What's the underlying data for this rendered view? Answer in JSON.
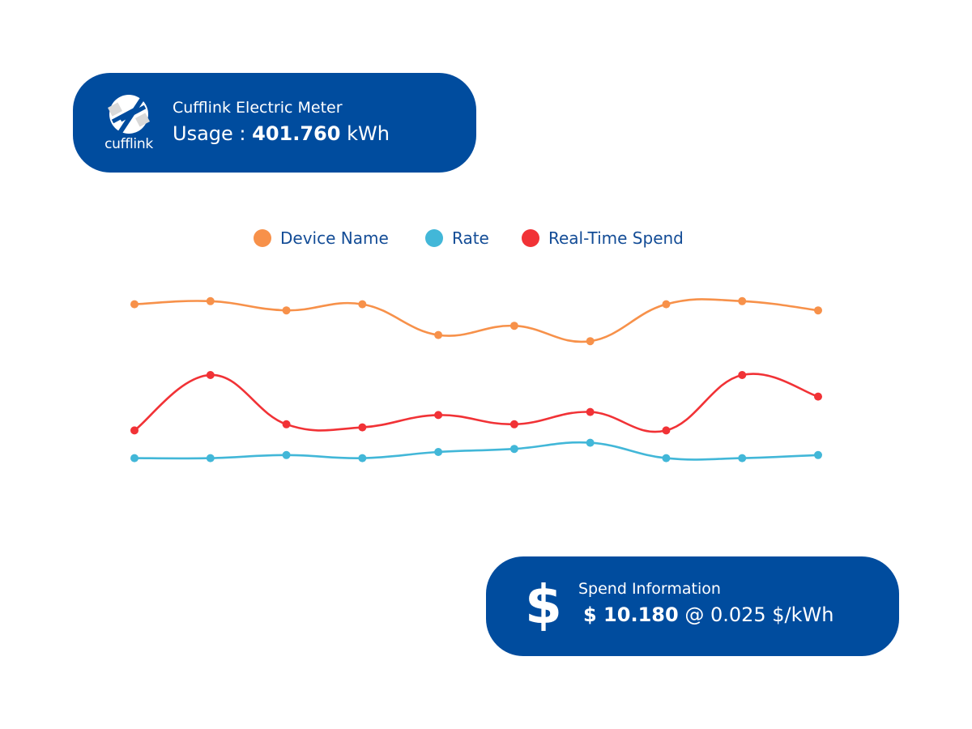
{
  "meter": {
    "logo_text": "cufflink",
    "title": "Cufflink Electric Meter",
    "usage_label": "Usage :",
    "usage_value": "401.760",
    "usage_unit": "kWh"
  },
  "spend": {
    "icon": "dollar-icon",
    "title": "Spend Information",
    "amount": "$ 10.180",
    "rate_text": "@ 0.025 $/kWh"
  },
  "colors": {
    "card_bg": "#004c9e",
    "legend_text": "#134c96"
  },
  "chart_data": {
    "type": "line",
    "title": "",
    "xlabel": "",
    "ylabel": "",
    "grid": false,
    "axes_visible": false,
    "legend_position": "top-center",
    "x": [
      1,
      2,
      3,
      4,
      5,
      6,
      7,
      8,
      9,
      10
    ],
    "ylim": [
      0,
      100
    ],
    "series": [
      {
        "name": "Device Name",
        "color": "#f7914a",
        "values": [
          88,
          89,
          86,
          88,
          78,
          81,
          76,
          88,
          89,
          86
        ]
      },
      {
        "name": "Rate",
        "color": "#42b7d8",
        "values": [
          38,
          38,
          39,
          38,
          40,
          41,
          43,
          38,
          38,
          39
        ]
      },
      {
        "name": "Real-Time Spend",
        "color": "#f13236",
        "values": [
          47,
          65,
          49,
          48,
          52,
          49,
          53,
          47,
          65,
          58
        ]
      }
    ]
  }
}
